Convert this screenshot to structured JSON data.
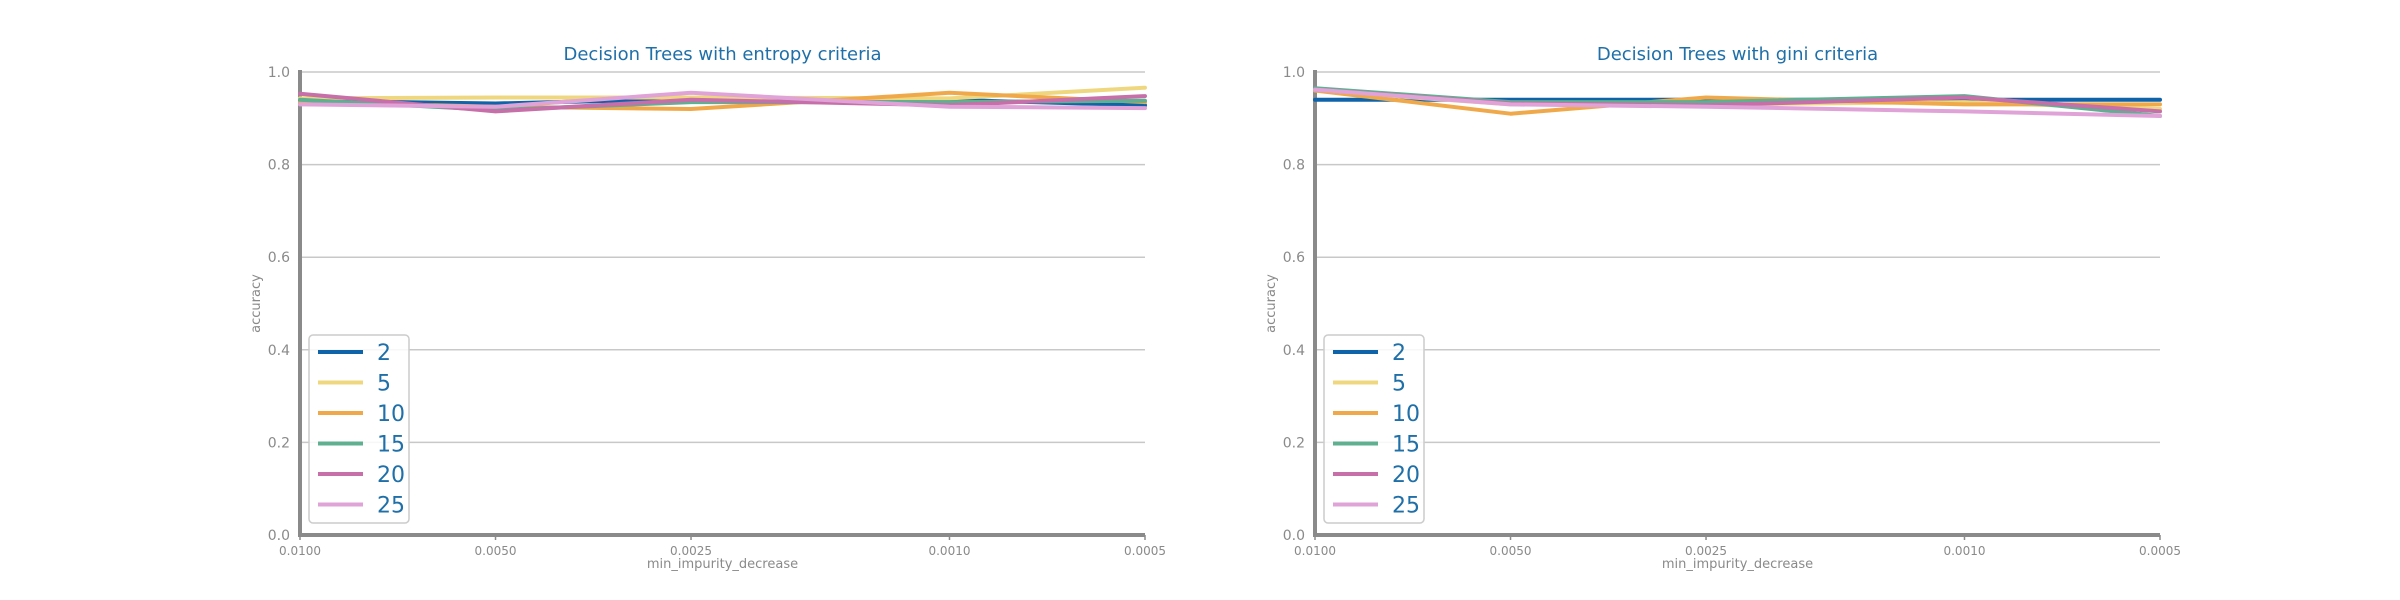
{
  "chart_data": [
    {
      "type": "line",
      "title": "Decision Trees with entropy criteria",
      "xlabel": "min_impurity_decrease",
      "ylabel": "accuracy",
      "x": [
        0.01,
        0.005,
        0.0025,
        0.001,
        0.0005
      ],
      "x_tick_labels": [
        "0.0100",
        "0.0050",
        "0.0025",
        "0.0010",
        "0.0005"
      ],
      "y_ticks": [
        "0.0",
        "0.2",
        "0.4",
        "0.6",
        "0.8",
        "1.0"
      ],
      "ylim": [
        0.0,
        1.0
      ],
      "x_scale": "log",
      "x_inverted": true,
      "grid": "horizontal",
      "legend_position": "lower-left",
      "series": [
        {
          "name": "2",
          "color": "#0f63a8",
          "values": [
            0.938,
            0.932,
            0.942,
            0.94,
            0.928
          ]
        },
        {
          "name": "5",
          "color": "#efd77f",
          "values": [
            0.943,
            0.945,
            0.945,
            0.943,
            0.966
          ]
        },
        {
          "name": "10",
          "color": "#f0a94a",
          "values": [
            0.935,
            0.925,
            0.92,
            0.955,
            0.935
          ]
        },
        {
          "name": "15",
          "color": "#5faf91",
          "values": [
            0.94,
            0.918,
            0.935,
            0.935,
            0.938
          ]
        },
        {
          "name": "20",
          "color": "#c66fa8",
          "values": [
            0.953,
            0.915,
            0.94,
            0.928,
            0.948
          ]
        },
        {
          "name": "25",
          "color": "#e0a3d8",
          "values": [
            0.93,
            0.925,
            0.955,
            0.925,
            0.922
          ]
        }
      ]
    },
    {
      "type": "line",
      "title": "Decision Trees with gini criteria",
      "xlabel": "min_impurity_decrease",
      "ylabel": "accuracy",
      "x": [
        0.01,
        0.005,
        0.0025,
        0.001,
        0.0005
      ],
      "x_tick_labels": [
        "0.0100",
        "0.0050",
        "0.0025",
        "0.0010",
        "0.0005"
      ],
      "y_ticks": [
        "0.0",
        "0.2",
        "0.4",
        "0.6",
        "0.8",
        "1.0"
      ],
      "ylim": [
        0.0,
        1.0
      ],
      "x_scale": "log",
      "x_inverted": true,
      "grid": "horizontal",
      "legend_position": "lower-left",
      "series": [
        {
          "name": "2",
          "color": "#0f63a8",
          "values": [
            0.94,
            0.94,
            0.94,
            0.94,
            0.94
          ]
        },
        {
          "name": "5",
          "color": "#efd77f",
          "values": [
            0.96,
            0.93,
            0.93,
            0.935,
            0.92
          ]
        },
        {
          "name": "10",
          "color": "#f0a94a",
          "values": [
            0.96,
            0.91,
            0.945,
            0.93,
            0.93
          ]
        },
        {
          "name": "15",
          "color": "#5faf91",
          "values": [
            0.965,
            0.935,
            0.935,
            0.948,
            0.905
          ]
        },
        {
          "name": "20",
          "color": "#c66fa8",
          "values": [
            0.962,
            0.932,
            0.928,
            0.945,
            0.915
          ]
        },
        {
          "name": "25",
          "color": "#e0a3d8",
          "values": [
            0.962,
            0.93,
            0.925,
            0.915,
            0.905
          ]
        }
      ]
    }
  ]
}
